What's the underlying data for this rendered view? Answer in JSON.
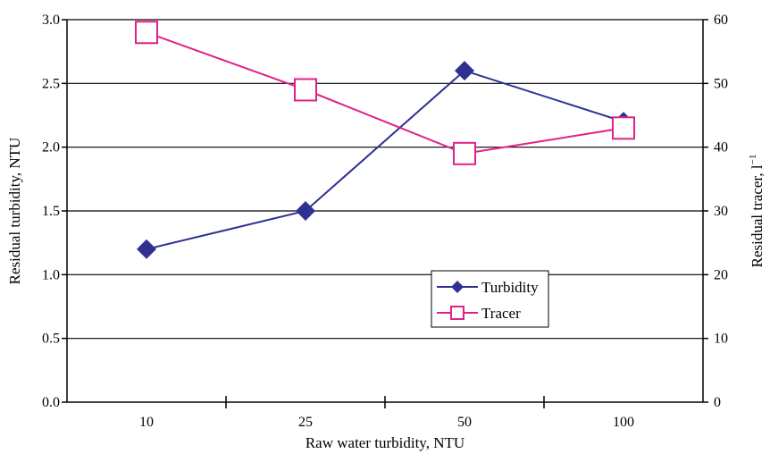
{
  "chart_data": {
    "type": "line",
    "categories": [
      "10",
      "25",
      "50",
      "100"
    ],
    "xlabel": "Raw water turbidity, NTU",
    "ylabel_left": "Residual turbidity, NTU",
    "ylabel_right": "Residual tracer, l",
    "ylabel_right_superscript": "−1",
    "ylim_left": [
      0,
      3.0
    ],
    "ylim_right": [
      0,
      60
    ],
    "yticks_left": [
      "0.0",
      "0.5",
      "1.0",
      "1.5",
      "2.0",
      "2.5",
      "3.0"
    ],
    "yticks_right": [
      "0",
      "10",
      "20",
      "30",
      "40",
      "50",
      "60"
    ],
    "grid": "horizontal",
    "legend_position": "center-right",
    "series": [
      {
        "name": "Turbidity",
        "axis": "left",
        "values": [
          1.2,
          1.5,
          2.6,
          2.2
        ],
        "color": "#2e3192",
        "marker": "filled-diamond"
      },
      {
        "name": "Tracer",
        "axis": "right",
        "values": [
          58,
          49,
          39,
          43
        ],
        "color": "#e0218a",
        "marker": "open-square"
      }
    ]
  }
}
